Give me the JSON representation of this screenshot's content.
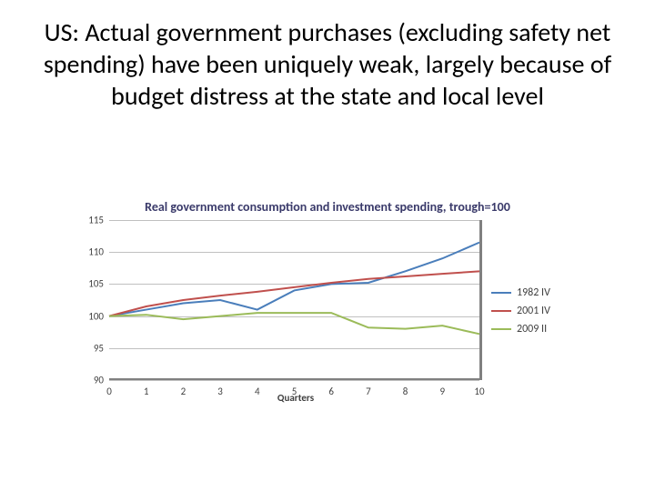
{
  "title": "US: Actual government purchases (excluding safety net spending) have been uniquely weak, largely because of budget distress at the state and local level",
  "chart": {
    "type": "line",
    "title": "Real government consumption and investment spending, trough=100",
    "title_color": "#3a3a6a",
    "title_fontsize": 14,
    "background_color": "#ffffff",
    "grid_color": "#c0c0c0",
    "axis_color": "#808080",
    "label_color": "#404040",
    "label_fontsize": 11,
    "x_title": "Quarters",
    "xlim": [
      0,
      10
    ],
    "x_ticks": [
      0,
      1,
      2,
      3,
      4,
      5,
      6,
      7,
      8,
      9,
      10
    ],
    "ylim": [
      90,
      115
    ],
    "y_ticks": [
      90,
      95,
      100,
      105,
      110,
      115
    ],
    "line_width": 2,
    "series": [
      {
        "name": "1982 IV",
        "color": "#4a7ebb",
        "x": [
          0,
          1,
          2,
          3,
          4,
          5,
          6,
          7,
          8,
          9,
          10
        ],
        "y": [
          100,
          101,
          102,
          102.5,
          101,
          104,
          105,
          105.2,
          107,
          109,
          111.5
        ]
      },
      {
        "name": "2001 IV",
        "color": "#c0504d",
        "x": [
          0,
          1,
          2,
          3,
          4,
          5,
          6,
          7,
          8,
          9,
          10
        ],
        "y": [
          100,
          101.5,
          102.5,
          103.2,
          103.8,
          104.5,
          105.2,
          105.8,
          106.2,
          106.6,
          107
        ]
      },
      {
        "name": "2009 II",
        "color": "#9bbb59",
        "x": [
          0,
          1,
          2,
          3,
          4,
          5,
          6,
          7,
          8,
          9,
          10
        ],
        "y": [
          100,
          100.2,
          99.5,
          100,
          100.5,
          100.5,
          100.5,
          98.2,
          98,
          98.5,
          97.2
        ]
      }
    ],
    "legend_position": "right"
  }
}
